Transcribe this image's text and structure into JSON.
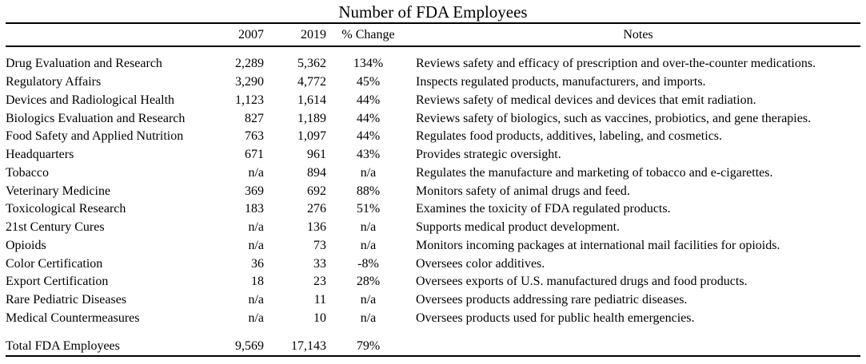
{
  "colors": {
    "text": "#000000",
    "background": "#ffffff",
    "rule": "#000000"
  },
  "chart_data": {
    "type": "table",
    "title": "Number of FDA Employees",
    "header": {
      "label": "",
      "y2007": "2007",
      "y2019": "2019",
      "change": "% Change",
      "notes": "Notes"
    },
    "rows": [
      {
        "label": "Drug Evaluation and Research",
        "y2007": "2,289",
        "y2019": "5,362",
        "change": "134%",
        "note": "Reviews safety and efficacy of prescription and over-the-counter medications."
      },
      {
        "label": "Regulatory Affairs",
        "y2007": "3,290",
        "y2019": "4,772",
        "change": "45%",
        "note": "Inspects regulated products, manufacturers, and imports."
      },
      {
        "label": "Devices and Radiological Health",
        "y2007": "1,123",
        "y2019": "1,614",
        "change": "44%",
        "note": "Reviews safety of medical devices and devices that emit radiation."
      },
      {
        "label": "Biologics Evaluation and Research",
        "y2007": "827",
        "y2019": "1,189",
        "change": "44%",
        "note": "Reviews safety of biologics, such as vaccines, probiotics, and gene therapies."
      },
      {
        "label": "Food Safety and Applied Nutrition",
        "y2007": "763",
        "y2019": "1,097",
        "change": "44%",
        "note": "Regulates food products, additives, labeling, and cosmetics."
      },
      {
        "label": "Headquarters",
        "y2007": "671",
        "y2019": "961",
        "change": "43%",
        "note": "Provides strategic oversight."
      },
      {
        "label": "Tobacco",
        "y2007": "n/a",
        "y2019": "894",
        "change": "n/a",
        "note": "Regulates the manufacture and marketing of tobacco and e-cigarettes."
      },
      {
        "label": "Veterinary Medicine",
        "y2007": "369",
        "y2019": "692",
        "change": "88%",
        "note": "Monitors safety of animal drugs and feed."
      },
      {
        "label": "Toxicological Research",
        "y2007": "183",
        "y2019": "276",
        "change": "51%",
        "note": "Examines the toxicity of FDA regulated products."
      },
      {
        "label": "21st Century Cures",
        "y2007": "n/a",
        "y2019": "136",
        "change": "n/a",
        "note": "Supports medical product development."
      },
      {
        "label": "Opioids",
        "y2007": "n/a",
        "y2019": "73",
        "change": "n/a",
        "note": "Monitors incoming packages at international mail facilities for opioids."
      },
      {
        "label": "Color Certification",
        "y2007": "36",
        "y2019": "33",
        "change": "-8%",
        "note": "Oversees color additives."
      },
      {
        "label": "Export Certification",
        "y2007": "18",
        "y2019": "23",
        "change": "28%",
        "note": "Oversees exports of U.S. manufactured drugs and food products."
      },
      {
        "label": "Rare Pediatric Diseases",
        "y2007": "n/a",
        "y2019": "11",
        "change": "n/a",
        "note": "Oversees products addressing rare pediatric diseases."
      },
      {
        "label": "Medical Countermeasures",
        "y2007": "n/a",
        "y2019": "10",
        "change": "n/a",
        "note": "Oversees products used for public health emergencies."
      }
    ],
    "total_row": {
      "label": "Total FDA Employees",
      "y2007": "9,569",
      "y2019": "17,143",
      "change": "79%",
      "note": ""
    }
  }
}
